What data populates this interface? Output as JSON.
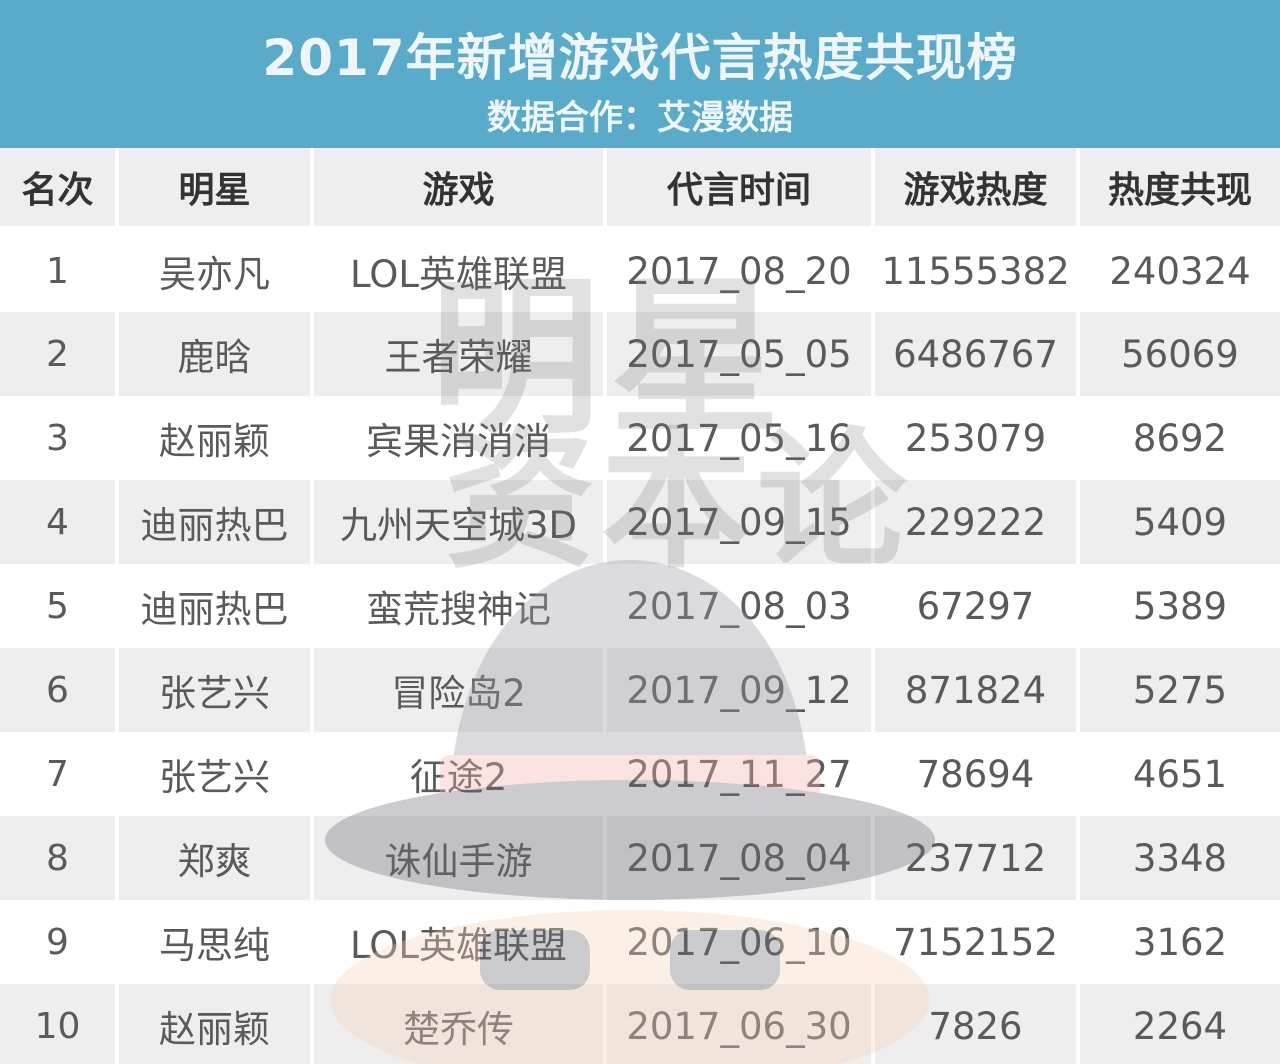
{
  "header": {
    "title": "2017年新增游戏代言热度共现榜",
    "subtitle": "数据合作：艾漫数据"
  },
  "watermark": {
    "line1": "明星",
    "line2": "资本论",
    "hat_colors": {
      "hat": "#9a9aa6",
      "band": "#f1b1ac",
      "face": "#f5d2b8",
      "brim": "#6e6e7c"
    }
  },
  "colors": {
    "header_bg": "#59abc9",
    "row_alt": "#eeeeee"
  },
  "table": {
    "columns": [
      "名次",
      "明星",
      "游戏",
      "代言时间",
      "游戏热度",
      "热度共现"
    ],
    "rows": [
      {
        "rank": "1",
        "star": "吴亦凡",
        "game": "LOL英雄联盟",
        "date": "2017_08_20",
        "heat": "11555382",
        "cooccur": "240324"
      },
      {
        "rank": "2",
        "star": "鹿晗",
        "game": "王者荣耀",
        "date": "2017_05_05",
        "heat": "6486767",
        "cooccur": "56069"
      },
      {
        "rank": "3",
        "star": "赵丽颖",
        "game": "宾果消消消",
        "date": "2017_05_16",
        "heat": "253079",
        "cooccur": "8692"
      },
      {
        "rank": "4",
        "star": "迪丽热巴",
        "game": "九州天空城3D",
        "date": "2017_09_15",
        "heat": "229222",
        "cooccur": "5409"
      },
      {
        "rank": "5",
        "star": "迪丽热巴",
        "game": "蛮荒搜神记",
        "date": "2017_08_03",
        "heat": "67297",
        "cooccur": "5389"
      },
      {
        "rank": "6",
        "star": "张艺兴",
        "game": "冒险岛2",
        "date": "2017_09_12",
        "heat": "871824",
        "cooccur": "5275"
      },
      {
        "rank": "7",
        "star": "张艺兴",
        "game": "征途2",
        "date": "2017_11_27",
        "heat": "78694",
        "cooccur": "4651"
      },
      {
        "rank": "8",
        "star": "郑爽",
        "game": "诛仙手游",
        "date": "2017_08_04",
        "heat": "237712",
        "cooccur": "3348"
      },
      {
        "rank": "9",
        "star": "马思纯",
        "game": "LOL英雄联盟",
        "date": "2017_06_10",
        "heat": "7152152",
        "cooccur": "3162"
      },
      {
        "rank": "10",
        "star": "赵丽颖",
        "game": "楚乔传",
        "date": "2017_06_30",
        "heat": "7826",
        "cooccur": "2264"
      }
    ]
  }
}
